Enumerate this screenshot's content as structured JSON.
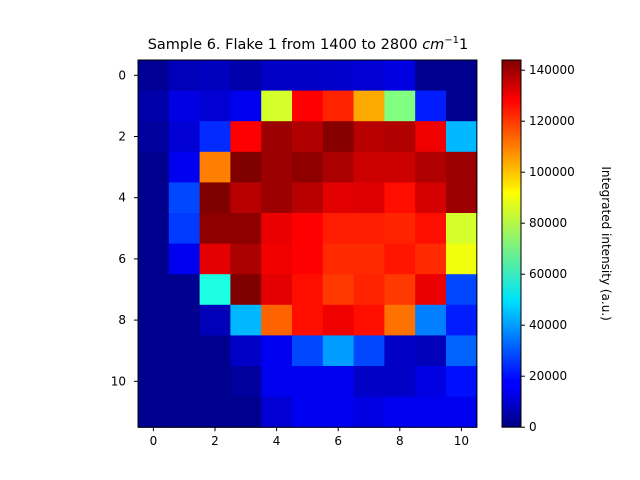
{
  "chart_data": {
    "type": "heatmap",
    "title_prefix": "Sample 6. Flake 1  from 1400 to 2800 ",
    "title_unit_base": "cm",
    "title_unit_sup": "−1",
    "title_suffix": "1",
    "xlabel": "",
    "ylabel": "",
    "colorbar_label": "Integrated intensity (a.u.)",
    "colormap": "jet",
    "vmin": 0,
    "vmax": 144000,
    "x_ticks": [
      0,
      2,
      4,
      6,
      8,
      10
    ],
    "y_ticks": [
      0,
      2,
      4,
      6,
      8,
      10
    ],
    "colorbar_ticks": [
      0,
      20000,
      40000,
      60000,
      80000,
      100000,
      120000,
      140000
    ],
    "values": [
      [
        3000,
        8000,
        9000,
        6000,
        10000,
        10000,
        11000,
        12000,
        14000,
        2000,
        2000
      ],
      [
        6000,
        14000,
        12000,
        16000,
        84000,
        126000,
        121000,
        102000,
        72000,
        22000,
        2000
      ],
      [
        4000,
        12000,
        24000,
        126000,
        140000,
        137000,
        143000,
        136000,
        137000,
        128000,
        44000
      ],
      [
        2000,
        16000,
        108000,
        144000,
        140000,
        142000,
        138000,
        133000,
        133000,
        137000,
        140000
      ],
      [
        2000,
        28000,
        145000,
        136000,
        140000,
        136000,
        130000,
        131000,
        124000,
        132000,
        140000
      ],
      [
        2000,
        26000,
        142000,
        142000,
        129000,
        126000,
        122000,
        122000,
        121000,
        124000,
        84000
      ],
      [
        2000,
        16000,
        130000,
        138000,
        128000,
        126000,
        120000,
        120000,
        123000,
        120000,
        88000
      ],
      [
        2000,
        2000,
        58000,
        144000,
        130000,
        124000,
        118000,
        121000,
        118000,
        129000,
        28000
      ],
      [
        2000,
        2000,
        8000,
        44000,
        112000,
        124000,
        128000,
        124000,
        110000,
        36000,
        22000
      ],
      [
        2000,
        2000,
        2000,
        10000,
        16000,
        28000,
        40000,
        28000,
        10000,
        8000,
        32000
      ],
      [
        2000,
        2000,
        2000,
        4000,
        16000,
        16000,
        16000,
        10000,
        10000,
        14000,
        20000
      ],
      [
        2000,
        2000,
        2000,
        2000,
        12000,
        16000,
        16000,
        14000,
        16000,
        16000,
        16000
      ]
    ]
  }
}
